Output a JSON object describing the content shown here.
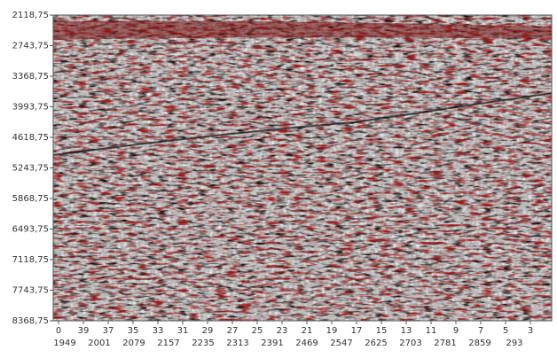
{
  "chart_data": {
    "type": "seismic",
    "ylim": [
      2118.75,
      8368.75
    ],
    "yticks": [
      {
        "value": 2118.75,
        "label": "2118,75"
      },
      {
        "value": 2743.75,
        "label": "2743,75"
      },
      {
        "value": 3368.75,
        "label": "3368,75"
      },
      {
        "value": 3993.75,
        "label": "3993,75"
      },
      {
        "value": 4618.75,
        "label": "4618,75"
      },
      {
        "value": 5243.75,
        "label": "5243,75"
      },
      {
        "value": 5868.75,
        "label": "5868,75"
      },
      {
        "value": 6493.75,
        "label": "6493,75"
      },
      {
        "value": 7118.75,
        "label": "7118,75"
      },
      {
        "value": 7743.75,
        "label": "7743,75"
      },
      {
        "value": 8368.75,
        "label": "8368,75"
      }
    ],
    "x_labels_top": [
      "0",
      "39",
      "37",
      "35",
      "33",
      "31",
      "29",
      "27",
      "25",
      "23",
      "21",
      "19",
      "17",
      "15",
      "13",
      "11",
      "9",
      "7",
      "5",
      "3"
    ],
    "x_labels_bottom": [
      "1949",
      "2001",
      "2079",
      "2157",
      "2235",
      "2313",
      "2391",
      "2469",
      "2547",
      "2625",
      "2703",
      "2781",
      "2859",
      "293"
    ]
  }
}
